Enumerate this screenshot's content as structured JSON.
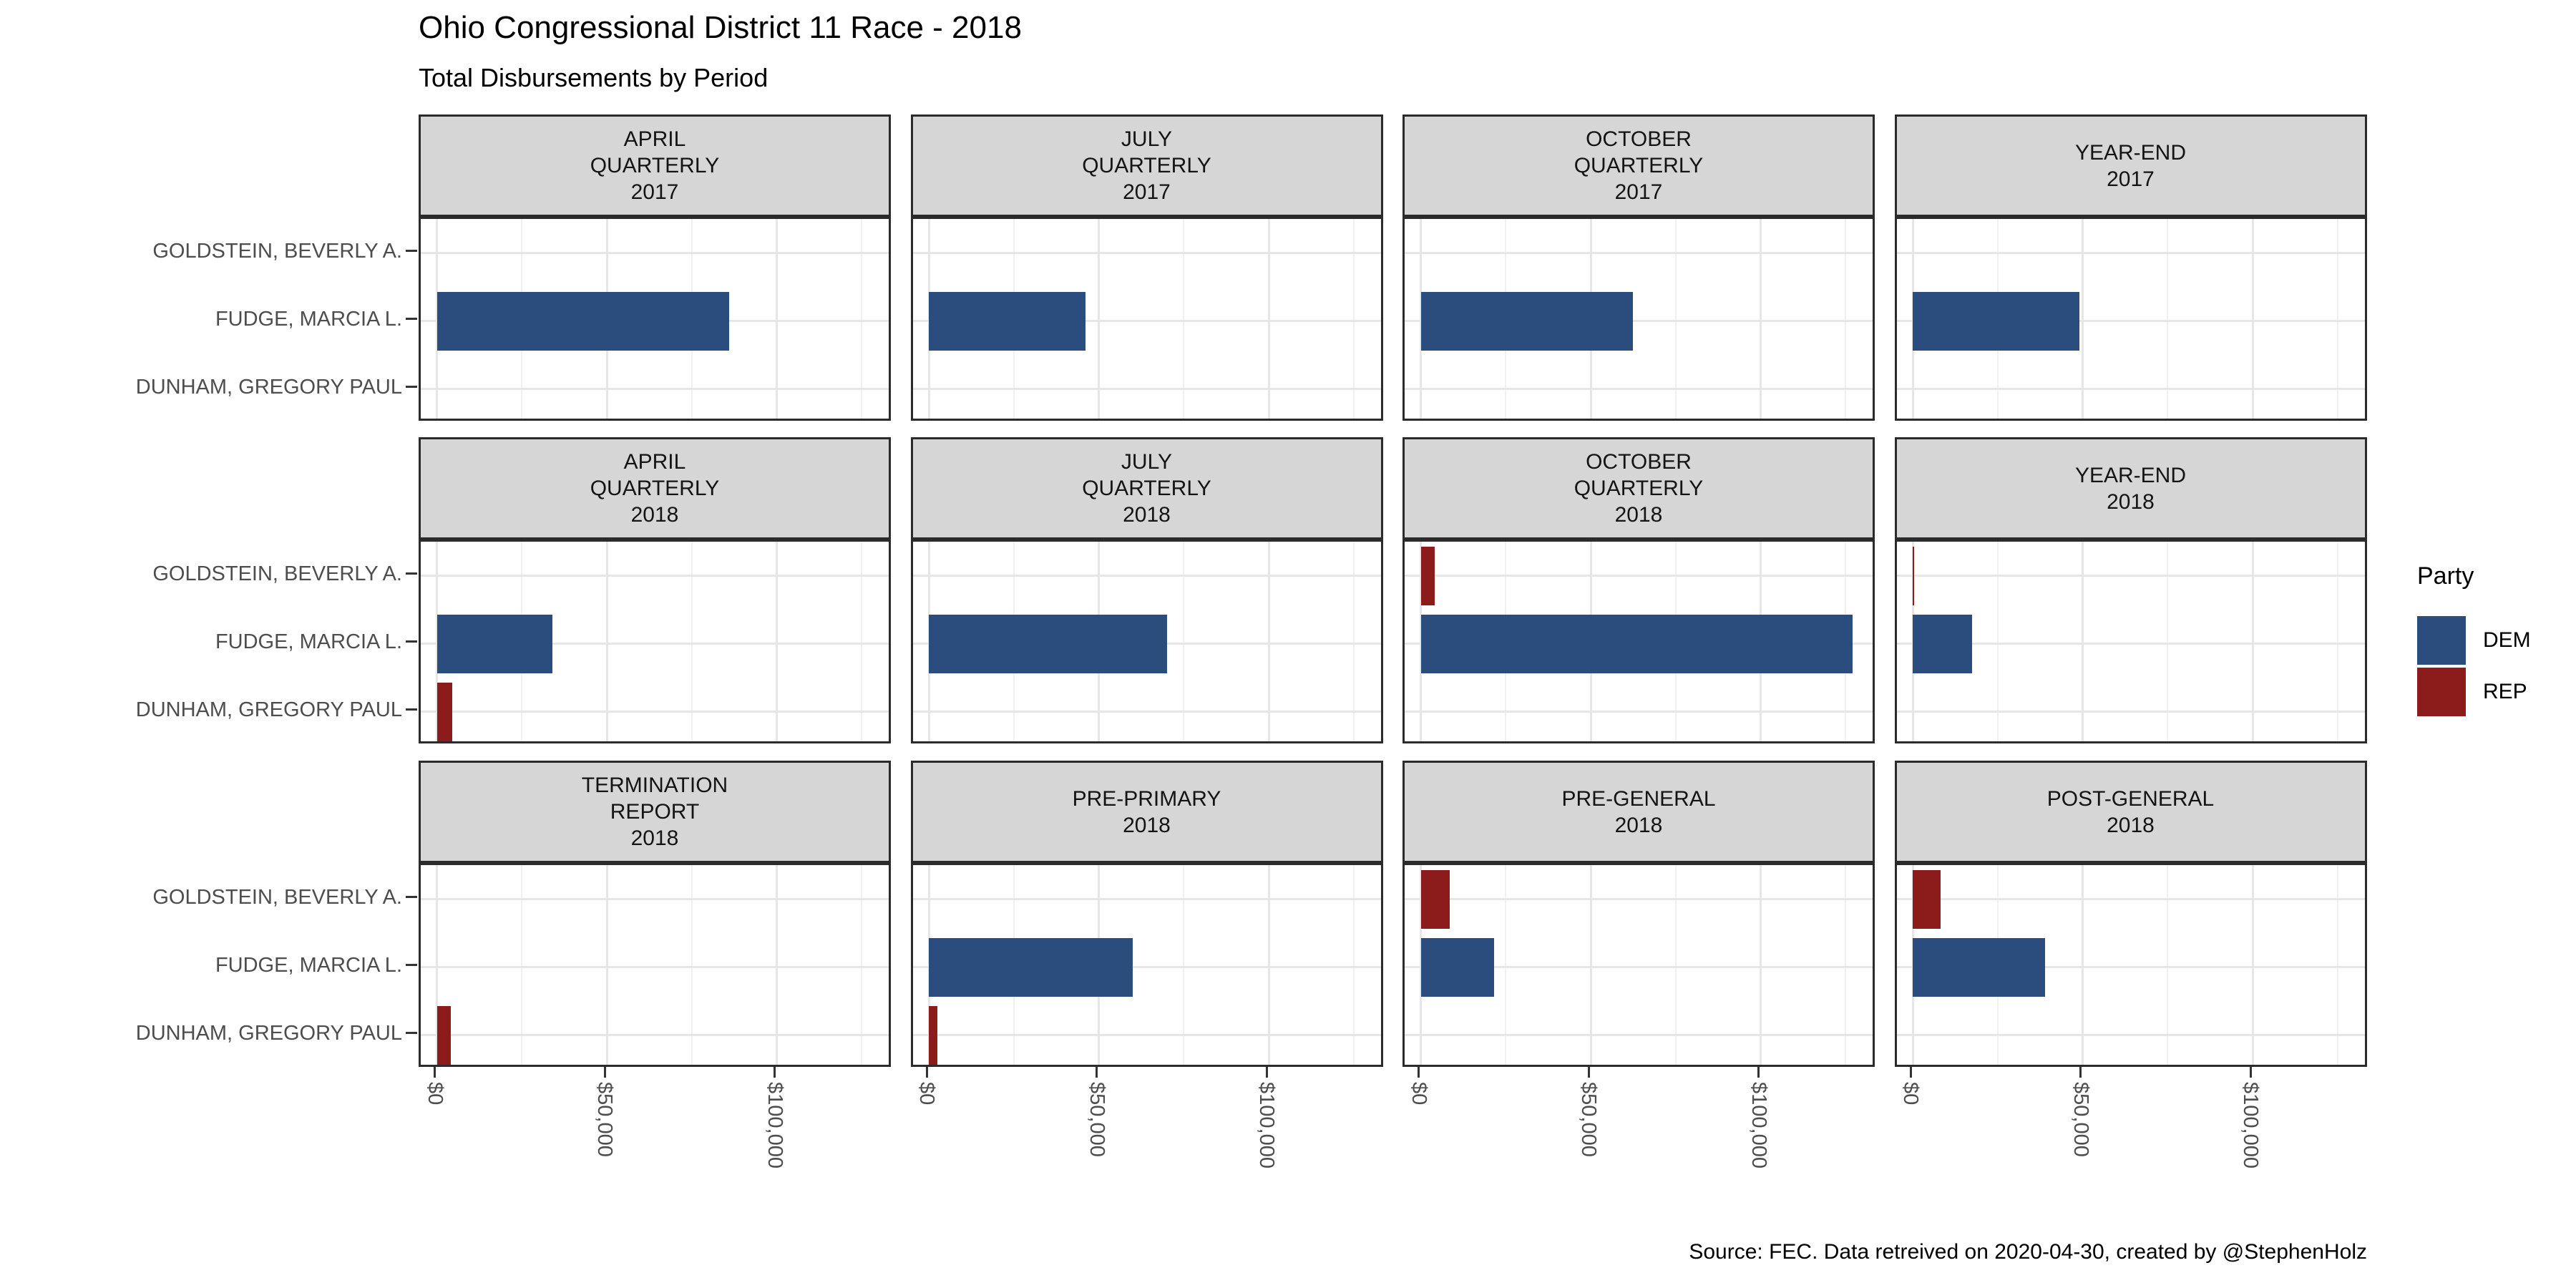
{
  "title": "Ohio Congressional District 11 Race - 2018",
  "subtitle": "Total Disbursements by Period",
  "caption": "Source: FEC. Data retreived on 2020-04-30, created by @StephenHolz",
  "legend": {
    "title": "Party",
    "entries": [
      {
        "label": "DEM",
        "color": "#2B4D7E"
      },
      {
        "label": "REP",
        "color": "#8C1C1B"
      }
    ]
  },
  "colors": {
    "dem": "#2B4D7E",
    "rep": "#8C1C1B",
    "strip_background": "#D6D6D6",
    "panel_border": "#2B2B2B",
    "grid_major": "#E6E6E6",
    "grid_minor": "#F0F0F0",
    "axis_text": "#4D4D4D"
  },
  "chart_data": {
    "type": "bar",
    "orientation": "horizontal",
    "title": "Ohio Congressional District 11 Race - 2018",
    "subtitle": "Total Disbursements by Period",
    "xlabel": "",
    "ylabel": "",
    "grid": true,
    "legend_position": "right",
    "facet_grid": {
      "rows": 3,
      "cols": 4
    },
    "categories": [
      "GOLDSTEIN, BEVERLY A.",
      "FUDGE, MARCIA L.",
      "DUNHAM, GREGORY PAUL"
    ],
    "x_axis": {
      "tick_labels": [
        "$0",
        "$50,000",
        "$100,000"
      ],
      "tick_values": [
        0,
        50000,
        100000
      ],
      "minor_tick_values": [
        25000,
        75000,
        125000
      ],
      "range": [
        0,
        134000
      ],
      "format": "USD"
    },
    "facets": [
      {
        "title": "APRIL\nQUARTERLY\n2017",
        "bars": [
          {
            "candidate": "FUDGE, MARCIA L.",
            "party": "DEM",
            "value": 86000
          }
        ]
      },
      {
        "title": "JULY\nQUARTERLY\n2017",
        "bars": [
          {
            "candidate": "FUDGE, MARCIA L.",
            "party": "DEM",
            "value": 46000
          }
        ]
      },
      {
        "title": "OCTOBER\nQUARTERLY\n2017",
        "bars": [
          {
            "candidate": "FUDGE, MARCIA L.",
            "party": "DEM",
            "value": 62500
          }
        ]
      },
      {
        "title": "YEAR-END\n2017",
        "bars": [
          {
            "candidate": "FUDGE, MARCIA L.",
            "party": "DEM",
            "value": 49000
          }
        ]
      },
      {
        "title": "APRIL\nQUARTERLY\n2018",
        "bars": [
          {
            "candidate": "FUDGE, MARCIA L.",
            "party": "DEM",
            "value": 34000
          },
          {
            "candidate": "DUNHAM, GREGORY PAUL",
            "party": "REP",
            "value": 4500
          }
        ]
      },
      {
        "title": "JULY\nQUARTERLY\n2018",
        "bars": [
          {
            "candidate": "FUDGE, MARCIA L.",
            "party": "DEM",
            "value": 70000
          }
        ]
      },
      {
        "title": "OCTOBER\nQUARTERLY\n2018",
        "bars": [
          {
            "candidate": "GOLDSTEIN, BEVERLY A.",
            "party": "REP",
            "value": 4000
          },
          {
            "candidate": "FUDGE, MARCIA L.",
            "party": "DEM",
            "value": 127000
          }
        ]
      },
      {
        "title": "YEAR-END\n2018",
        "bars": [
          {
            "candidate": "GOLDSTEIN, BEVERLY A.",
            "party": "REP",
            "value": 400
          },
          {
            "candidate": "FUDGE, MARCIA L.",
            "party": "DEM",
            "value": 17500
          }
        ]
      },
      {
        "title": "TERMINATION\nREPORT\n2018",
        "bars": [
          {
            "candidate": "DUNHAM, GREGORY PAUL",
            "party": "REP",
            "value": 4000
          }
        ]
      },
      {
        "title": "PRE-PRIMARY\n2018",
        "bars": [
          {
            "candidate": "FUDGE, MARCIA L.",
            "party": "DEM",
            "value": 60000
          },
          {
            "candidate": "DUNHAM, GREGORY PAUL",
            "party": "REP",
            "value": 2500
          }
        ]
      },
      {
        "title": "PRE-GENERAL\n2018",
        "bars": [
          {
            "candidate": "GOLDSTEIN, BEVERLY A.",
            "party": "REP",
            "value": 8500
          },
          {
            "candidate": "FUDGE, MARCIA L.",
            "party": "DEM",
            "value": 21500
          }
        ]
      },
      {
        "title": "POST-GENERAL\n2018",
        "bars": [
          {
            "candidate": "GOLDSTEIN, BEVERLY A.",
            "party": "REP",
            "value": 8300
          },
          {
            "candidate": "FUDGE, MARCIA L.",
            "party": "DEM",
            "value": 39000
          }
        ]
      }
    ]
  }
}
